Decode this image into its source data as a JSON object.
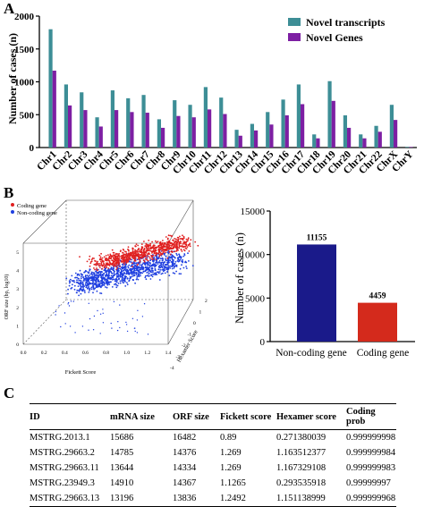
{
  "panels": {
    "a": "A",
    "b": "B",
    "c": "C"
  },
  "colors": {
    "novel_transcripts": "#3d8e96",
    "novel_genes": "#7d1fa3",
    "non_coding_bar": "#1a1a8a",
    "coding_bar": "#d42a1c",
    "coding_points": "#e02020",
    "non_coding_points": "#1f3fe0"
  },
  "chart_data": [
    {
      "type": "bar",
      "title": "",
      "xlabel": "",
      "ylabel": "Number of cases (n)",
      "ylim": [
        0,
        2000
      ],
      "yticks": [
        "0",
        "500",
        "1000",
        "1500",
        "2000"
      ],
      "legend_position": "top-right",
      "categories": [
        "Chr1",
        "Chr2",
        "Chr3",
        "Chr4",
        "Chr5",
        "Chr6",
        "Chr7",
        "Chr8",
        "Chr9",
        "Chr10",
        "Chr11",
        "Chr12",
        "Chr13",
        "Chr14",
        "Chr15",
        "Chr16",
        "Chr17",
        "Chr18",
        "Chr19",
        "Chr20",
        "Chr21",
        "Chr22",
        "ChrX",
        "ChrY"
      ],
      "series": [
        {
          "name": "Novel transcripts",
          "values": [
            1800,
            960,
            840,
            460,
            870,
            750,
            800,
            430,
            720,
            650,
            920,
            760,
            270,
            360,
            540,
            730,
            960,
            200,
            1010,
            490,
            200,
            330,
            650,
            10
          ]
        },
        {
          "name": "Novel Genes",
          "values": [
            1170,
            640,
            570,
            320,
            570,
            540,
            530,
            300,
            480,
            460,
            580,
            510,
            180,
            260,
            350,
            490,
            660,
            140,
            710,
            300,
            140,
            240,
            420,
            8
          ]
        }
      ]
    },
    {
      "type": "scatter",
      "title": "",
      "xlabel": "Fickett Score",
      "ylabel": "ORF size (bp, log10)",
      "zlabel": "Hexamer Score",
      "x_ticks": [
        "0.0",
        "0.2",
        "0.4",
        "0.6",
        "0.8",
        "1.0",
        "1.2",
        "1.4"
      ],
      "y_ticks": [
        "0",
        "1",
        "2",
        "3",
        "4",
        "5"
      ],
      "z_ticks": [
        "-4",
        "-3",
        "-2",
        "-1",
        "0",
        "1",
        "2"
      ],
      "legend_position": "top-left",
      "series": [
        {
          "name": "Coding gene"
        },
        {
          "name": "Non-coding gene"
        }
      ]
    },
    {
      "type": "bar",
      "title": "",
      "xlabel": "",
      "ylabel": "Number of cases (n)",
      "ylim": [
        0,
        15000
      ],
      "yticks": [
        "0",
        "5000",
        "10000",
        "15000"
      ],
      "categories": [
        "Non-coding gene",
        "Coding gene"
      ],
      "values": [
        11155,
        4459
      ],
      "data_labels": [
        "11155",
        "4459"
      ]
    }
  ],
  "table": {
    "headers": [
      "ID",
      "mRNA size",
      "ORF size",
      "Fickett score",
      "Hexamer score",
      "Coding prob"
    ],
    "rows": [
      [
        "MSTRG.2013.1",
        "15686",
        "16482",
        "0.89",
        "0.271380039",
        "0.999999998"
      ],
      [
        "MSTRG.29663.2",
        "14785",
        "14376",
        "1.269",
        "1.163512377",
        "0.999999984"
      ],
      [
        "MSTRG.29663.11",
        "13644",
        "14334",
        "1.269",
        "1.167329108",
        "0.999999983"
      ],
      [
        "MSTRG.23949.3",
        "14910",
        "14367",
        "1.1265",
        "0.293535918",
        "0.99999997"
      ],
      [
        "MSTRG.29663.13",
        "13196",
        "13836",
        "1.2492",
        "1.151138999",
        "0.999999968"
      ]
    ]
  }
}
